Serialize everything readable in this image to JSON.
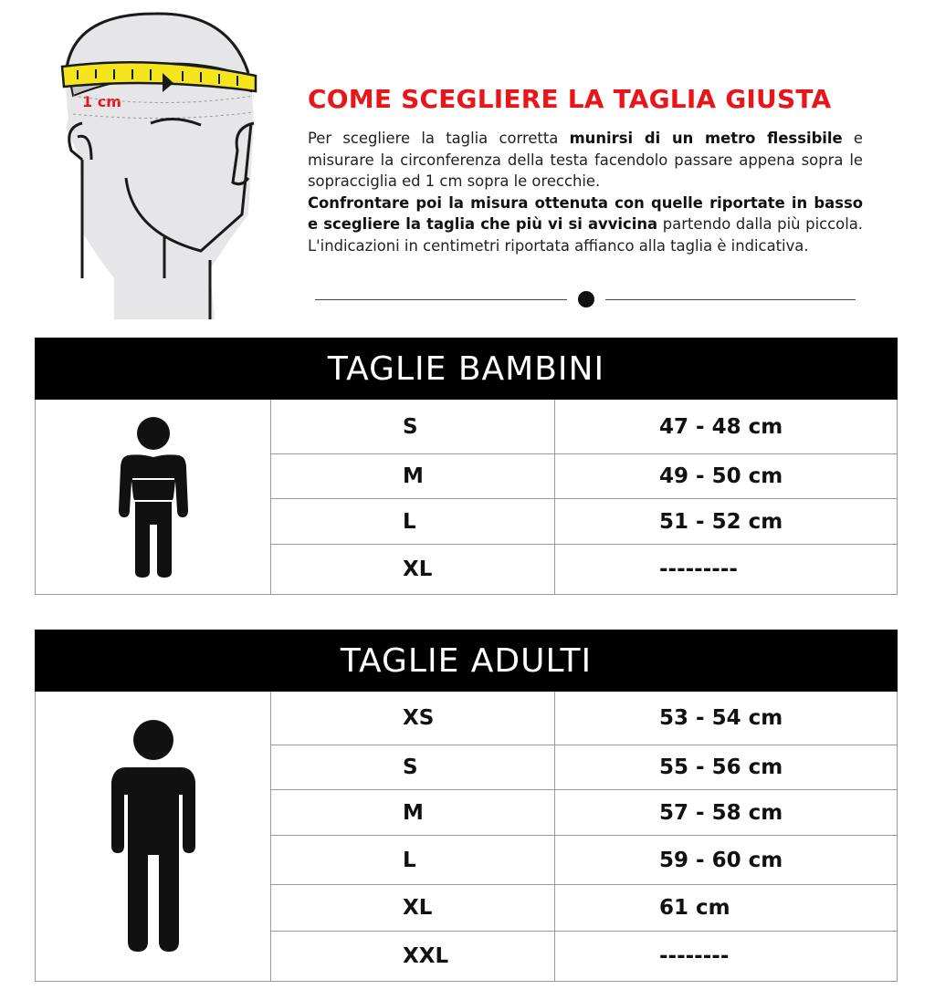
{
  "illustration": {
    "tape_label": "1 cm",
    "tape_color": "#f5e51c",
    "label_color": "#e8151b"
  },
  "title": "COME SCEGLIERE LA TAGLIA GIUSTA",
  "description": {
    "p1_a": "Per scegliere la taglia corretta ",
    "p1_b": "munirsi di un metro flessibile",
    "p1_c": " e misurare la circonferenza della testa facendolo passare appena sopra le sopracciglia ed 1 cm sopra le orecchie.",
    "p2_a": "Confrontare poi la misura ottenuta con quelle riportate in basso e scegliere la taglia che più vi si avvicina",
    "p2_b": " partendo dalla più piccola. L'indicazioni in centimetri riportata affianco alla taglia è indicativa."
  },
  "kids": {
    "title": "TAGLIE BAMBINI",
    "rows": [
      {
        "size": "S",
        "cm": "47 - 48 cm"
      },
      {
        "size": "M",
        "cm": "49 - 50 cm"
      },
      {
        "size": "L",
        "cm": "51 - 52 cm"
      },
      {
        "size": "XL",
        "cm": "---------"
      }
    ]
  },
  "adults": {
    "title": "TAGLIE ADULTI",
    "rows": [
      {
        "size": "XS",
        "cm": "53 - 54 cm"
      },
      {
        "size": "S",
        "cm": "55 - 56 cm"
      },
      {
        "size": "M",
        "cm": "57 - 58 cm"
      },
      {
        "size": "L",
        "cm": "59 - 60 cm"
      },
      {
        "size": "XL",
        "cm": "61 cm"
      },
      {
        "size": "XXL",
        "cm": "--------"
      }
    ]
  }
}
